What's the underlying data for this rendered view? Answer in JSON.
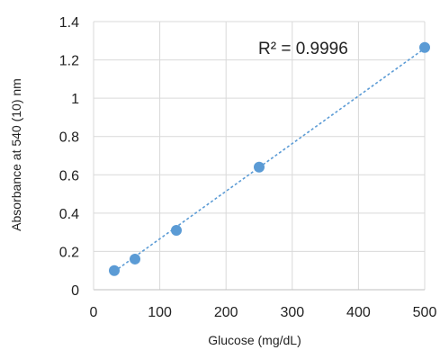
{
  "chart_data": {
    "type": "scatter",
    "title": "",
    "xlabel": "Glucose (mg/dL)",
    "ylabel": "Absorbance at 540 (10) nm",
    "xlim": [
      0,
      500
    ],
    "ylim": [
      0,
      1.4
    ],
    "x_ticks": [
      0,
      100,
      200,
      300,
      400,
      500
    ],
    "y_ticks": [
      0,
      0.2,
      0.4,
      0.6,
      0.8,
      1,
      1.2,
      1.4
    ],
    "x_tick_labels": [
      "0",
      "100",
      "200",
      "300",
      "400",
      "500"
    ],
    "y_tick_labels": [
      "0",
      "0.2",
      "0.4",
      "0.6",
      "0.8",
      "1",
      "1.2",
      "1.4"
    ],
    "grid": true,
    "legend": "none",
    "series": [
      {
        "x": [
          31.25,
          62.5,
          125,
          250,
          500
        ],
        "y": [
          0.1,
          0.16,
          0.31,
          0.64,
          1.265
        ],
        "color": "#5b9bd5"
      }
    ],
    "trendline": {
      "type": "linear",
      "style": "dotted",
      "color": "#5b9bd5",
      "x_range": [
        31.25,
        500
      ],
      "y_at_start": 0.095,
      "y_at_end": 1.26
    },
    "annotation": "R² = 0.9996"
  }
}
